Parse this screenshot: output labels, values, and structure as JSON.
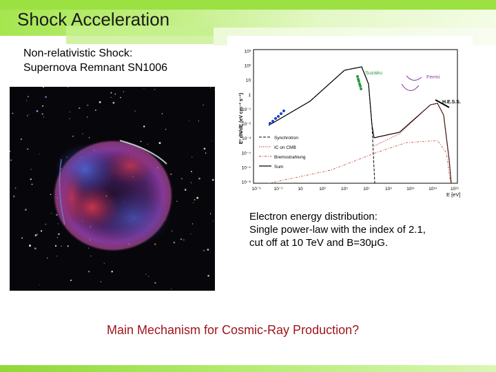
{
  "slide": {
    "title": "Shock Acceleration",
    "subtitle_lines": [
      "Non-relativistic Shock:",
      "Supernova Remnant SN1006"
    ],
    "caption_lines": [
      "Electron energy distribution:",
      "Single power-law with the index of 2.1,",
      "cut off at 10 TeV and B=30μG."
    ],
    "question": "Main Mechanism for Cosmic-Ray Production?"
  },
  "plot": {
    "ylabel": "E² dN/dE (eV cm⁻² s⁻¹)",
    "xlabel": "E [eV]",
    "y_ticks": [
      "10³",
      "10²",
      "10",
      "1",
      "10⁻¹",
      "10⁻²",
      "10⁻³",
      "10⁻⁴",
      "10⁻⁵",
      "10⁻⁶"
    ],
    "x_ticks": [
      "10⁻³",
      "10⁻¹",
      "10",
      "10³",
      "10⁵",
      "10⁷",
      "10⁹",
      "10¹¹",
      "10¹³",
      "10¹⁵"
    ],
    "legend": [
      "Synchrotron",
      "IC on CMB",
      "Bremsstrahlung",
      "Sum"
    ],
    "labels": {
      "suzaku": "Suzaku",
      "fermi": "Fermi",
      "hess": "H.E.S.S."
    }
  }
}
